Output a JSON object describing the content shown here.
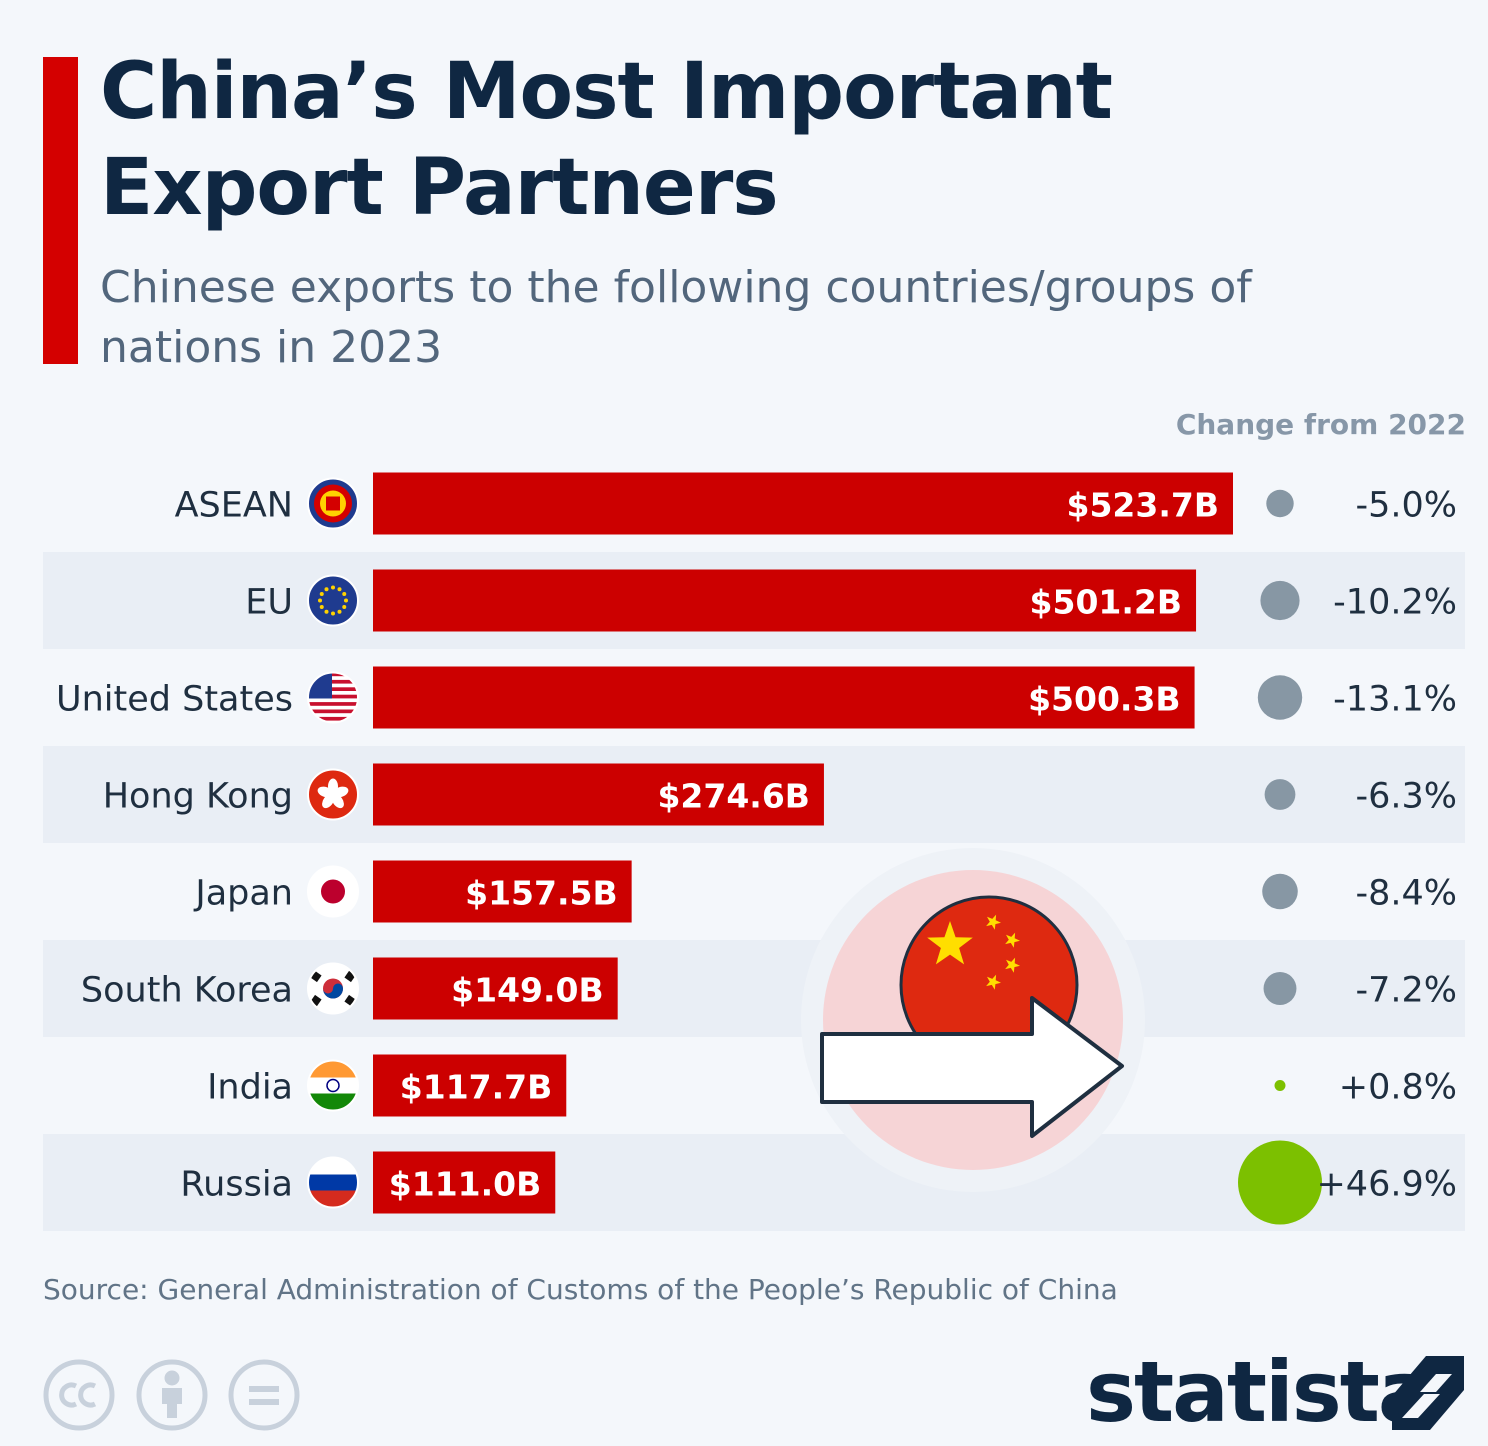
{
  "title": "China’s Most Important Export Partners",
  "subtitle": "Chinese exports to the following countries/groups of nations in 2023",
  "change_header": "Change from 2022",
  "source": "Source: General Administration of Customs of the People’s Republic of China",
  "brand": "statista",
  "colors": {
    "accent": "#d40000",
    "title": "#0f2742",
    "bar": "#cc0000",
    "negative_dot": "#8797a4",
    "positive_dot": "#7cc000",
    "stripe": "#e9eef5"
  },
  "chart_data": {
    "type": "bar",
    "orientation": "horizontal",
    "categories": [
      "ASEAN",
      "EU",
      "United States",
      "Hong Kong",
      "Japan",
      "South Korea",
      "India",
      "Russia"
    ],
    "values": [
      523.7,
      501.2,
      500.3,
      274.6,
      157.5,
      149.0,
      117.7,
      111.0
    ],
    "value_labels": [
      "$523.7B",
      "$501.2B",
      "$500.3B",
      "$274.6B",
      "$157.5B",
      "$149.0B",
      "$117.7B",
      "$111.0B"
    ],
    "change_from_2022": [
      -5.0,
      -10.2,
      -13.1,
      -6.3,
      -8.4,
      -7.2,
      0.8,
      46.9
    ],
    "change_labels": [
      "-5.0%",
      "-10.2%",
      "-13.1%",
      "-6.3%",
      "-8.4%",
      "-7.2%",
      "+0.8%",
      "+46.9%"
    ],
    "flags": [
      "asean-emblem-icon",
      "eu-flag-icon",
      "us-flag-icon",
      "hong-kong-flag-icon",
      "japan-flag-icon",
      "south-korea-flag-icon",
      "india-flag-icon",
      "russia-flag-icon"
    ],
    "xlim": [
      0,
      523.7
    ],
    "grid": false,
    "legend": "none",
    "title": "China’s Most Important Export Partners",
    "xlabel": "",
    "ylabel": ""
  }
}
